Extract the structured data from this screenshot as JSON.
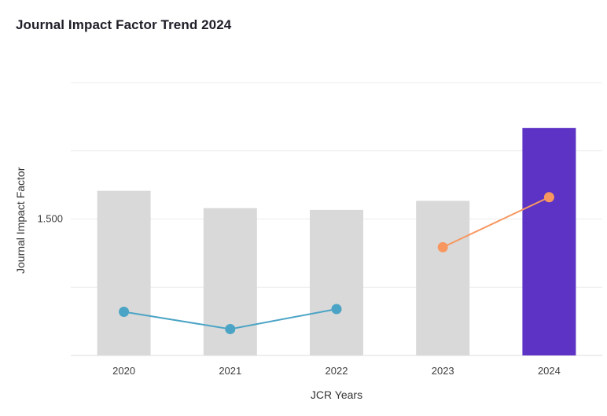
{
  "chart_data": {
    "type": "bar",
    "title": "Journal Impact Factor Trend 2024",
    "xlabel": "JCR Years",
    "ylabel": "Journal Impact Factor",
    "categories": [
      "2020",
      "2021",
      "2022",
      "2023",
      "2024"
    ],
    "series": [
      {
        "type": "bar",
        "values": [
          1.81,
          1.62,
          1.6,
          1.7,
          2.5
        ],
        "bar_colors": [
          "#d9d9d9",
          "#d9d9d9",
          "#d9d9d9",
          "#d9d9d9",
          "#5c33c4"
        ]
      },
      {
        "type": "line",
        "values": [
          0.48,
          0.29,
          0.51,
          1.19,
          1.74
        ],
        "point_colors": [
          "#4ba4c5",
          "#4ba4c5",
          "#4ba4c5",
          "#f7975f",
          "#f7975f"
        ],
        "segments": [
          {
            "indices": [
              0,
              1,
              2
            ],
            "color": "#4ba4c5"
          },
          {
            "indices": [
              3,
              4
            ],
            "color": "#f7975f"
          }
        ]
      }
    ],
    "y_axis": {
      "range": [
        0,
        3.0
      ],
      "gridline_values": [
        0.75,
        1.5,
        2.25,
        3.0
      ],
      "labeled_tick": {
        "value": 1.5,
        "label": "1.500"
      }
    },
    "grid": "horizontal",
    "legend": "none",
    "colors": {
      "background": "#ffffff",
      "gridline": "#ececec",
      "axis_line": "#dedede",
      "bar_default": "#d9d9d9",
      "bar_highlight": "#5c33c4",
      "line_teal": "#4ba4c5",
      "line_orange": "#f7975f",
      "title_text": "#1e1e28",
      "axis_title_text": "#333333",
      "tick_text": "#3d3d3d"
    }
  }
}
